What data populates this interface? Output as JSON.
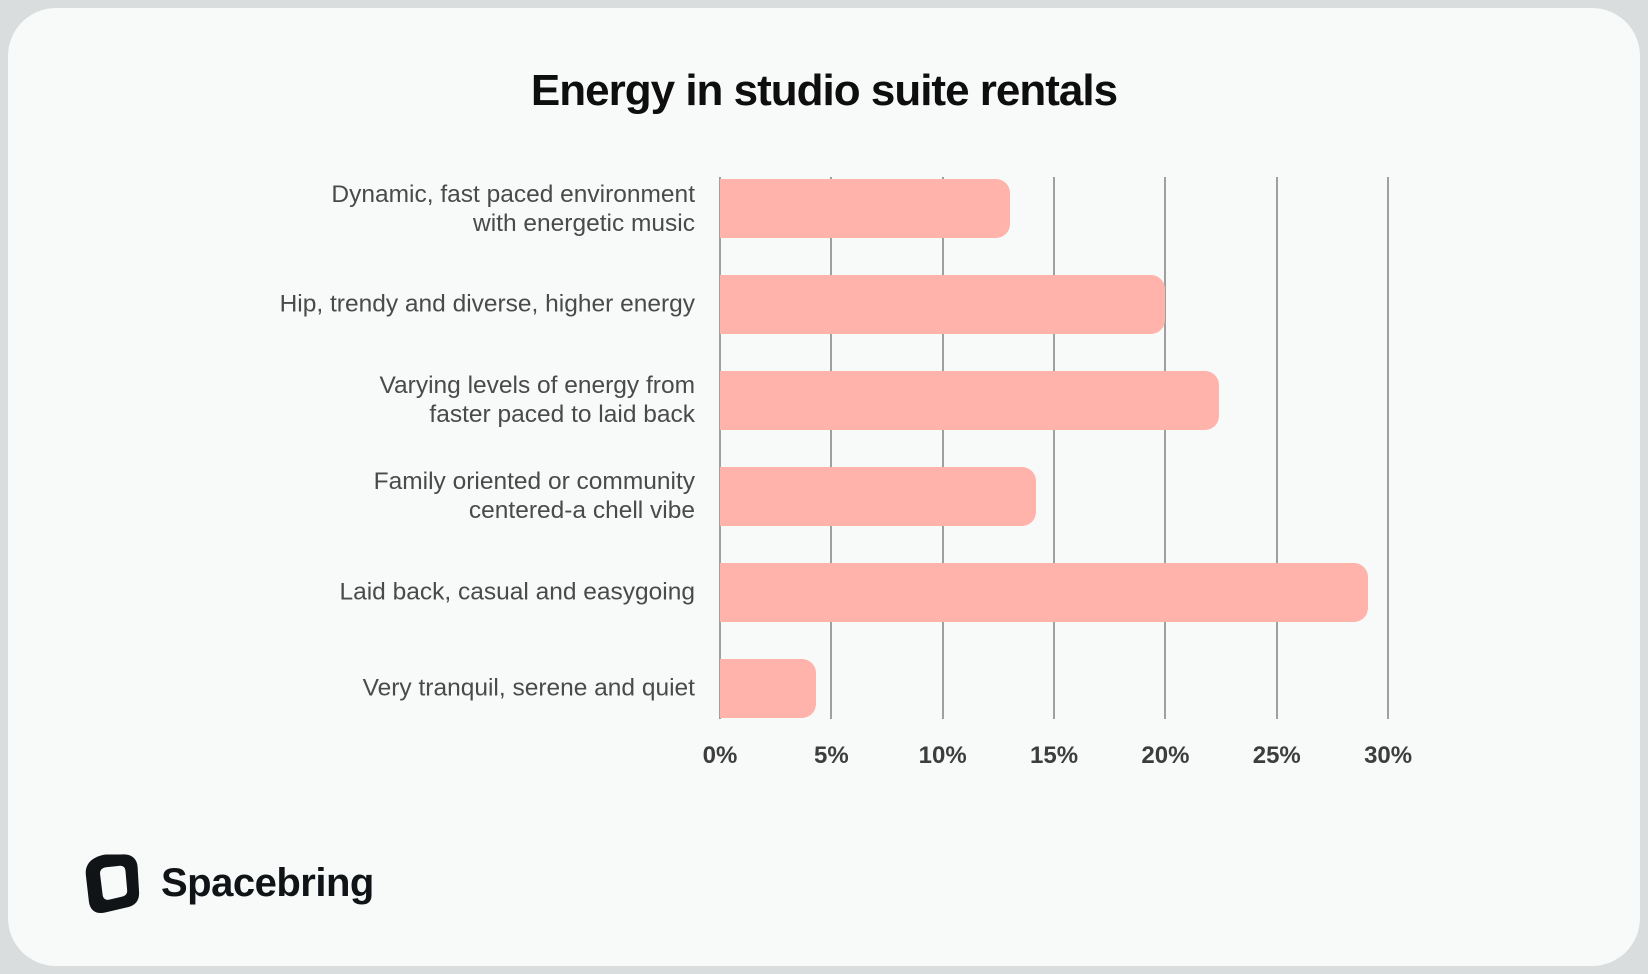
{
  "page": {
    "background": "#d9dddd",
    "card_background": "#f8f9f9"
  },
  "title": "Energy in studio suite rentals",
  "chart_data": {
    "type": "bar",
    "orientation": "horizontal",
    "title": "Energy in studio suite rentals",
    "categories": [
      "Dynamic, fast paced environment with energetic music",
      "Hip, trendy and diverse, higher energy",
      "Varying levels of energy from faster paced to laid back",
      "Family oriented or community centered-a chell vibe",
      "Laid back, casual and easygoing",
      "Very tranquil, serene and quiet"
    ],
    "category_lines": [
      [
        "Dynamic, fast paced environment",
        "with energetic music"
      ],
      [
        "Hip, trendy and diverse, higher energy"
      ],
      [
        "Varying levels of energy from",
        "faster paced to laid back"
      ],
      [
        "Family oriented or community",
        "centered-a chell vibe"
      ],
      [
        "Laid back, casual and easygoing"
      ],
      [
        "Very tranquil, serene and quiet"
      ]
    ],
    "values": [
      13,
      20,
      22.4,
      14.2,
      29.1,
      4.3
    ],
    "value_unit": "%",
    "xlim": [
      0,
      30
    ],
    "x_tick_values": [
      0,
      5,
      10,
      15,
      20,
      25,
      30
    ],
    "x_tick_labels": [
      "0%",
      "5%",
      "10%",
      "15%",
      "20%",
      "25%",
      "30%"
    ],
    "grid": true,
    "legend": false,
    "bar_color": "#ffb3aa",
    "grid_color": "#9f9f9f",
    "category_label_color": "#4a4a4a",
    "tick_label_color": "#3d3d3d",
    "title_color": "#0e0e0e"
  },
  "footer": {
    "brand": "Spacebring",
    "logo_icon": "spacebring-cube-icon"
  }
}
